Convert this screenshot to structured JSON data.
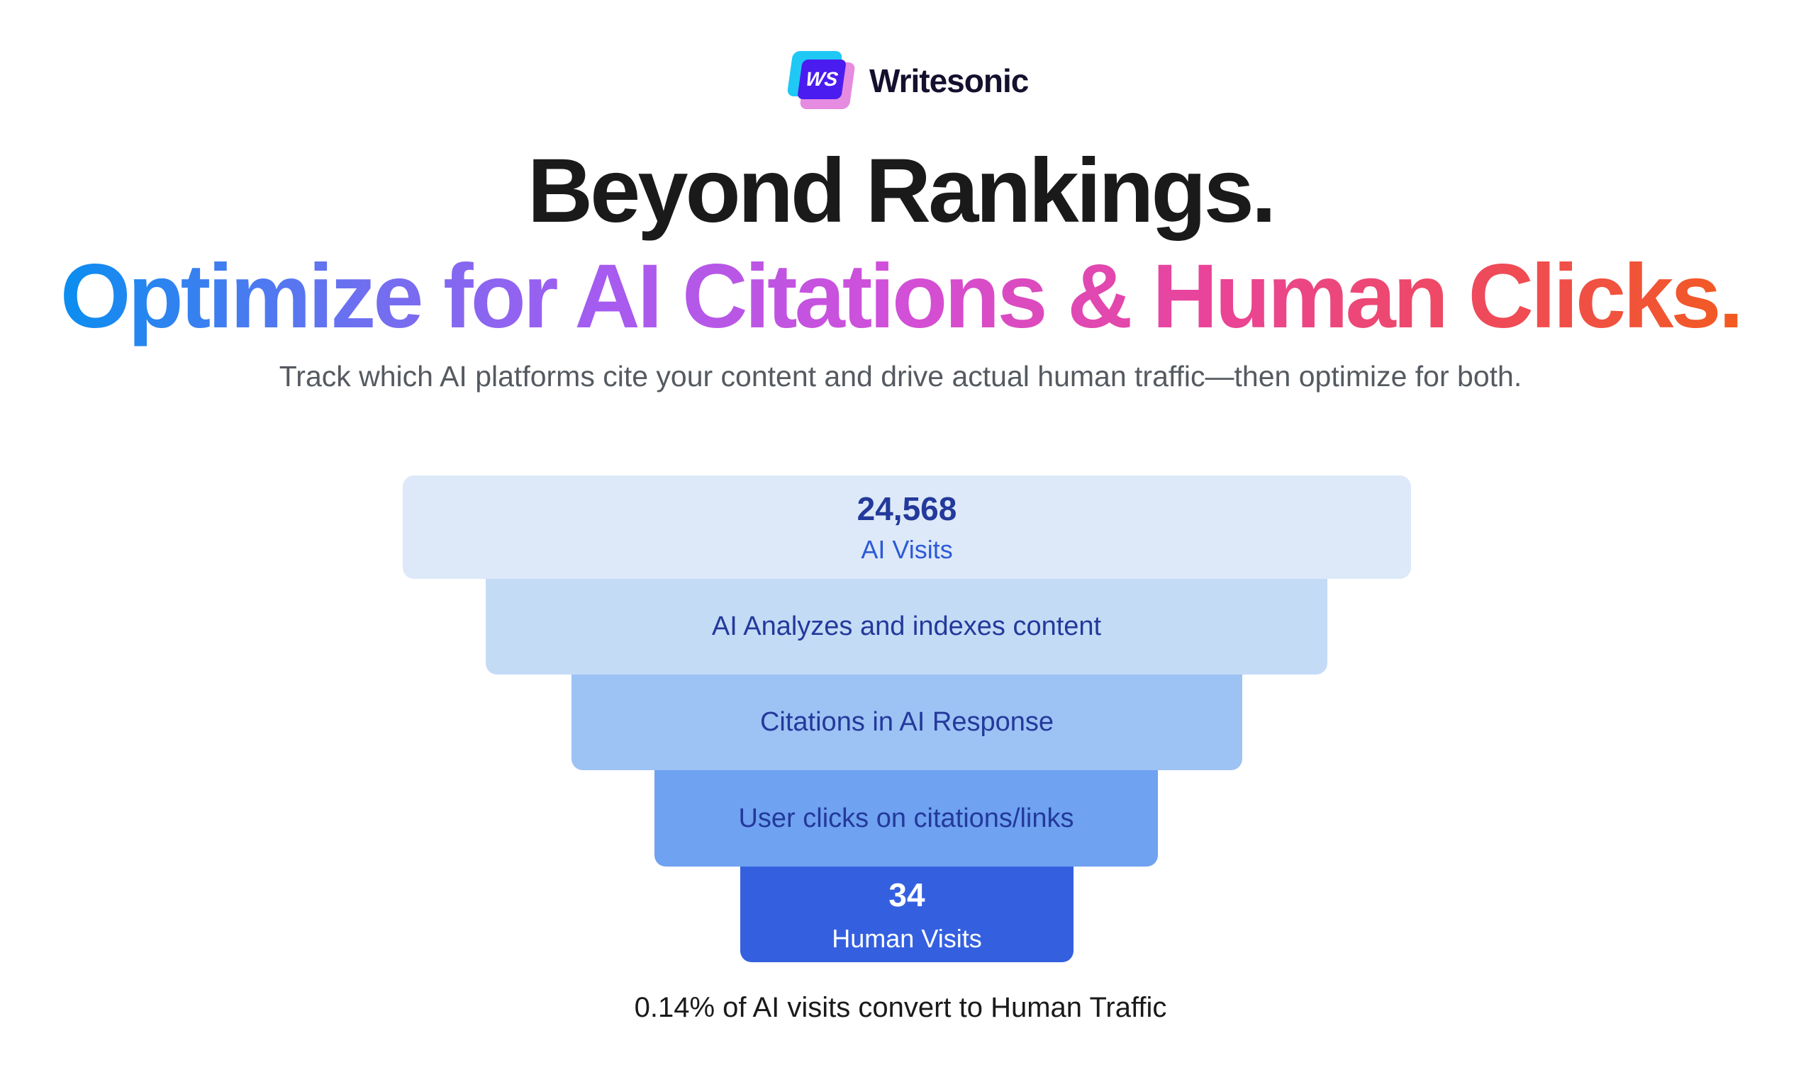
{
  "brand": {
    "logo_mark_text": "WS",
    "name": "Writesonic"
  },
  "headline": "Beyond Rankings.",
  "subheadline": "Optimize for AI Citations & Human Clicks.",
  "description": "Track which AI platforms cite your content and drive actual human traffic—then optimize for both.",
  "funnel": {
    "stages": [
      {
        "value": "24,568",
        "label": "AI Visits"
      },
      {
        "label": "AI Analyzes and indexes content"
      },
      {
        "label": "Citations in AI Response"
      },
      {
        "label": "User clicks on citations/links"
      },
      {
        "value": "34",
        "label": "Human Visits"
      }
    ],
    "colors": [
      "#dde9f8",
      "#c4dbf6",
      "#9dc2f4",
      "#6fa2f0",
      "#3460e0"
    ]
  },
  "conversion_note": "0.14% of AI visits convert to Human Traffic"
}
